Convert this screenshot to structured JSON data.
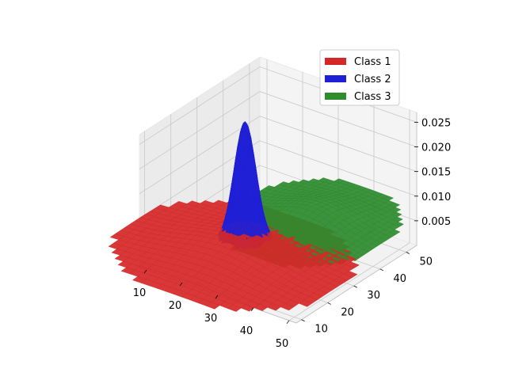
{
  "chart_data": {
    "type": "surface3d",
    "title": "",
    "xlabel": "",
    "ylabel": "",
    "zlabel": "",
    "xlim": [
      8,
      52
    ],
    "ylim": [
      8,
      54
    ],
    "zlim": [
      0,
      0.027
    ],
    "grid": true,
    "legend_position": "top-right",
    "x_ticks": [
      "10",
      "20",
      "30",
      "40",
      "50"
    ],
    "y_ticks": [
      "10",
      "20",
      "30",
      "40",
      "50"
    ],
    "z_ticks": [
      "0.005",
      "0.010",
      "0.015",
      "0.020",
      "0.025"
    ],
    "series": [
      {
        "name": "Class 1",
        "color": "#d62728",
        "center": [
          22,
          25
        ],
        "peak": 0.0035,
        "spread_x": 12,
        "spread_y": 10
      },
      {
        "name": "Class 2",
        "color": "#1f1fd6",
        "center": [
          20,
          32
        ],
        "peak": 0.0245,
        "spread_x": 2.5,
        "spread_y": 2.5
      },
      {
        "name": "Class 3",
        "color": "#2e8b2e",
        "center": [
          27,
          48
        ],
        "peak": 0.0035,
        "spread_x": 8,
        "spread_y": 9
      }
    ]
  }
}
